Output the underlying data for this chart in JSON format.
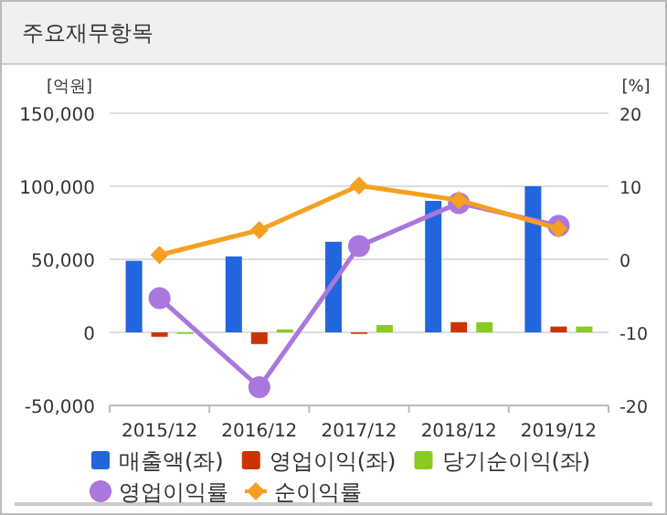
{
  "chart_data": {
    "type": "bar",
    "title": "주요재무항목",
    "ylabel": "[억원]",
    "y2label": "[%]",
    "categories": [
      "2015/12",
      "2016/12",
      "2017/12",
      "2018/12",
      "2019/12"
    ],
    "series": [
      {
        "name": "매출액(좌)",
        "color": "#2266dd",
        "values": [
          49000,
          52000,
          62000,
          90000,
          100000
        ]
      },
      {
        "name": "영업이익(좌)",
        "color": "#cc3300",
        "values": [
          -3000,
          -8000,
          -1000,
          7000,
          4000
        ]
      },
      {
        "name": "당기순이익(좌)",
        "color": "#88cc22",
        "values": [
          -1000,
          2000,
          5000,
          7000,
          4000
        ]
      },
      {
        "name": "영업이익률",
        "type": "line",
        "axis": "y2",
        "marker": "circle",
        "color": "#aa77dd",
        "values": [
          -5.3,
          -17.5,
          1.8,
          7.7,
          4.6
        ]
      },
      {
        "name": "순이익률",
        "type": "line",
        "axis": "y2",
        "marker": "diamond",
        "color": "#f5a020",
        "values": [
          0.6,
          4.0,
          10.1,
          8.1,
          4.2
        ]
      }
    ],
    "ylim": [
      -50000,
      150000
    ],
    "yticks": [
      {
        "value": -50000,
        "label": "-50,000"
      },
      {
        "value": 0,
        "label": "0"
      },
      {
        "value": 50000,
        "label": "50,000"
      },
      {
        "value": 100000,
        "label": "100,000"
      },
      {
        "value": 150000,
        "label": "150,000"
      }
    ],
    "y2lim": [
      -20,
      20
    ],
    "y2ticks": [
      -20,
      -10,
      0,
      10,
      20
    ],
    "grid": "y",
    "legend": "bottom"
  }
}
